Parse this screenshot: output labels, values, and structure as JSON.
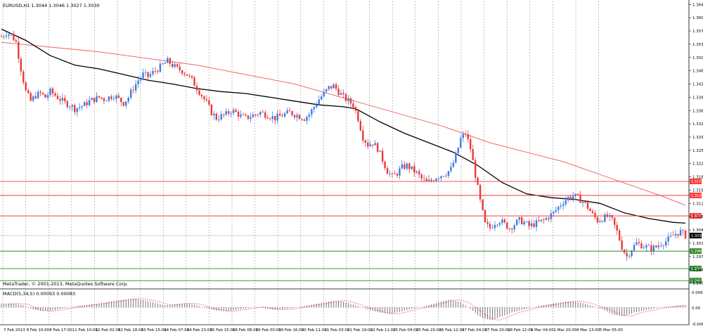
{
  "window": {
    "symbol_info": "EURUSD,H1  1.3044 1.3046 1.3027 1.3030",
    "copyright": "MetaTrader, © 2001-2013, MetaQuotes Software Corp.",
    "macd_label": "MACD(5,34,5) 0.00093 0.00083"
  },
  "colors": {
    "background": "#ffffff",
    "grid": "#999999",
    "bull": "#3b7de0",
    "bear": "#e83a3a",
    "slow_ma": "#f06a6a",
    "fast_ma": "#000000",
    "red_level": "#ff3a3a",
    "green_level": "#2e8b2e",
    "macd_hist": "#777777",
    "macd_signal": "#ff2020"
  },
  "chart_data": {
    "type": "candlestick",
    "symbol": "EURUSD",
    "timeframe": "H1",
    "ohlc_header": {
      "open": 1.3044,
      "high": 1.3046,
      "low": 1.3027,
      "close": 1.303
    },
    "price_axis_ticks": [
      "1.3640",
      "1.3605",
      "1.3570",
      "1.3535",
      "1.3500",
      "1.3465",
      "1.3430",
      "1.3395",
      "1.3360",
      "1.3325",
      "1.3290",
      "1.3255",
      "1.3220",
      "1.3185",
      "1.3150",
      "1.3115",
      "1.3080",
      "1.3045",
      "1.3010",
      "1.2975",
      "1.2940",
      "1.2905"
    ],
    "ylim": [
      1.2893,
      1.3648
    ],
    "current_price": "1.3030",
    "resistance_levels": [
      "1.3173",
      "1.3136",
      "1.3082"
    ],
    "support_levels": [
      "1.2989",
      "1.2943",
      "1.2911"
    ],
    "time_axis_labels": [
      "7 Feb 2013",
      "8 Feb 10:00",
      "8 Feb 17:00",
      "11 Feb 10:00",
      "12 Feb 02:00",
      "12 Feb 18:00",
      "13 Feb 15:00",
      "14 Feb 07:00",
      "14 Feb 23:00",
      "15 Feb 15:00",
      "18 Feb 08:00",
      "19 Feb 00:00",
      "19 Feb 16:00",
      "20 Feb 11:00",
      "21 Feb 03:00",
      "21 Feb 19:00",
      "22 Feb 11:00",
      "25 Feb 04:00",
      "25 Feb 20:00",
      "26 Feb 12:00",
      "27 Feb 04:00",
      "27 Feb 20:00",
      "28 Feb 12:00",
      "1 Mar 04:00",
      "1 Mar 20:00",
      "4 Mar 13:00",
      "5 Mar 05:00"
    ],
    "close_path": [
      [
        0,
        1.3555
      ],
      [
        2,
        1.3565
      ],
      [
        4,
        1.356
      ],
      [
        6,
        1.354
      ],
      [
        8,
        1.347
      ],
      [
        10,
        1.341
      ],
      [
        12,
        1.3385
      ],
      [
        14,
        1.34
      ],
      [
        16,
        1.3405
      ],
      [
        18,
        1.3395
      ],
      [
        20,
        1.341
      ],
      [
        22,
        1.34
      ],
      [
        24,
        1.339
      ],
      [
        26,
        1.338
      ],
      [
        28,
        1.3375
      ],
      [
        30,
        1.3365
      ],
      [
        32,
        1.337
      ],
      [
        34,
        1.3375
      ],
      [
        36,
        1.3385
      ],
      [
        38,
        1.339
      ],
      [
        40,
        1.3395
      ],
      [
        42,
        1.339
      ],
      [
        44,
        1.3395
      ],
      [
        46,
        1.34
      ],
      [
        48,
        1.339
      ],
      [
        50,
        1.338
      ],
      [
        52,
        1.3395
      ],
      [
        54,
        1.342
      ],
      [
        56,
        1.344
      ],
      [
        58,
        1.3455
      ],
      [
        60,
        1.345
      ],
      [
        62,
        1.346
      ],
      [
        64,
        1.347
      ],
      [
        66,
        1.348
      ],
      [
        68,
        1.349
      ],
      [
        70,
        1.348
      ],
      [
        72,
        1.347
      ],
      [
        74,
        1.3465
      ],
      [
        76,
        1.3455
      ],
      [
        78,
        1.344
      ],
      [
        80,
        1.342
      ],
      [
        82,
        1.34
      ],
      [
        84,
        1.338
      ],
      [
        86,
        1.3355
      ],
      [
        88,
        1.334
      ],
      [
        90,
        1.3345
      ],
      [
        92,
        1.335
      ],
      [
        94,
        1.336
      ],
      [
        96,
        1.3355
      ],
      [
        98,
        1.3345
      ],
      [
        100,
        1.334
      ],
      [
        102,
        1.3345
      ],
      [
        104,
        1.335
      ],
      [
        106,
        1.3355
      ],
      [
        108,
        1.335
      ],
      [
        110,
        1.3345
      ],
      [
        112,
        1.334
      ],
      [
        114,
        1.3345
      ],
      [
        116,
        1.335
      ],
      [
        118,
        1.3355
      ],
      [
        120,
        1.335
      ],
      [
        122,
        1.3345
      ],
      [
        124,
        1.334
      ],
      [
        126,
        1.335
      ],
      [
        128,
        1.337
      ],
      [
        130,
        1.339
      ],
      [
        132,
        1.3405
      ],
      [
        134,
        1.342
      ],
      [
        136,
        1.3425
      ],
      [
        138,
        1.341
      ],
      [
        140,
        1.3395
      ],
      [
        142,
        1.3385
      ],
      [
        144,
        1.3375
      ],
      [
        146,
        1.334
      ],
      [
        148,
        1.329
      ],
      [
        150,
        1.327
      ],
      [
        152,
        1.3275
      ],
      [
        154,
        1.326
      ],
      [
        156,
        1.323
      ],
      [
        158,
        1.32
      ],
      [
        160,
        1.3185
      ],
      [
        162,
        1.3195
      ],
      [
        164,
        1.321
      ],
      [
        166,
        1.3215
      ],
      [
        168,
        1.3205
      ],
      [
        170,
        1.3195
      ],
      [
        172,
        1.318
      ],
      [
        174,
        1.317
      ],
      [
        176,
        1.3175
      ],
      [
        178,
        1.3185
      ],
      [
        180,
        1.319
      ],
      [
        182,
        1.3195
      ],
      [
        184,
        1.3205
      ],
      [
        186,
        1.324
      ],
      [
        188,
        1.3285
      ],
      [
        190,
        1.33
      ],
      [
        192,
        1.326
      ],
      [
        194,
        1.319
      ],
      [
        196,
        1.312
      ],
      [
        198,
        1.306
      ],
      [
        200,
        1.305
      ],
      [
        202,
        1.3065
      ],
      [
        204,
        1.307
      ],
      [
        206,
        1.306
      ],
      [
        208,
        1.305
      ],
      [
        210,
        1.306
      ],
      [
        212,
        1.307
      ],
      [
        214,
        1.3065
      ],
      [
        216,
        1.3055
      ],
      [
        218,
        1.306
      ],
      [
        220,
        1.3065
      ],
      [
        222,
        1.307
      ],
      [
        224,
        1.308
      ],
      [
        226,
        1.309
      ],
      [
        228,
        1.3105
      ],
      [
        230,
        1.312
      ],
      [
        232,
        1.313
      ],
      [
        234,
        1.3135
      ],
      [
        236,
        1.313
      ],
      [
        238,
        1.312
      ],
      [
        240,
        1.3105
      ],
      [
        242,
        1.3085
      ],
      [
        244,
        1.307
      ],
      [
        246,
        1.3075
      ],
      [
        248,
        1.308
      ],
      [
        250,
        1.307
      ],
      [
        252,
        1.304
      ],
      [
        254,
        1.3
      ],
      [
        256,
        1.2975
      ],
      [
        258,
        1.2995
      ],
      [
        260,
        1.301
      ],
      [
        262,
        1.3005
      ],
      [
        264,
        1.3
      ],
      [
        266,
        1.2995
      ],
      [
        268,
        1.3
      ],
      [
        270,
        1.301
      ],
      [
        272,
        1.3015
      ],
      [
        274,
        1.3025
      ],
      [
        276,
        1.3035
      ],
      [
        278,
        1.304
      ],
      [
        280,
        1.303
      ]
    ],
    "slow_ma_path": [
      [
        0,
        1.354
      ],
      [
        40,
        1.3515
      ],
      [
        80,
        1.348
      ],
      [
        120,
        1.343
      ],
      [
        150,
        1.3375
      ],
      [
        180,
        1.332
      ],
      [
        200,
        1.3275
      ],
      [
        230,
        1.3225
      ],
      [
        250,
        1.318
      ],
      [
        270,
        1.3135
      ],
      [
        280,
        1.311
      ]
    ],
    "fast_ma_path": [
      [
        0,
        1.3575
      ],
      [
        10,
        1.3545
      ],
      [
        20,
        1.3505
      ],
      [
        30,
        1.348
      ],
      [
        40,
        1.347
      ],
      [
        50,
        1.3455
      ],
      [
        60,
        1.344
      ],
      [
        70,
        1.343
      ],
      [
        80,
        1.3418
      ],
      [
        90,
        1.341
      ],
      [
        100,
        1.3405
      ],
      [
        110,
        1.3395
      ],
      [
        120,
        1.3385
      ],
      [
        130,
        1.3375
      ],
      [
        140,
        1.337
      ],
      [
        145,
        1.3365
      ],
      [
        155,
        1.333
      ],
      [
        165,
        1.33
      ],
      [
        175,
        1.3275
      ],
      [
        185,
        1.325
      ],
      [
        195,
        1.3215
      ],
      [
        205,
        1.317
      ],
      [
        215,
        1.314
      ],
      [
        225,
        1.313
      ],
      [
        235,
        1.3125
      ],
      [
        245,
        1.3115
      ],
      [
        255,
        1.309
      ],
      [
        265,
        1.3075
      ],
      [
        275,
        1.3065
      ],
      [
        280,
        1.3063
      ]
    ],
    "macd_indicator": "MACD(5,34,5)",
    "macd_values": {
      "main": 0.00093,
      "signal": 0.00083
    },
    "macd_axis_ticks": [
      "0.00601",
      "0.00",
      "-0.00619"
    ],
    "macd_hist": [
      0.0012,
      0.0015,
      0.001,
      -0.0008,
      -0.0015,
      -0.0012,
      -0.0005,
      0.0002,
      0.0008,
      0.0012,
      0.0018,
      0.0024,
      0.003,
      0.0034,
      0.0028,
      0.0018,
      0.0008,
      0.0012,
      0.0016,
      0.001,
      -0.0004,
      -0.0012,
      -0.0016,
      -0.001,
      -0.0004,
      0.0002,
      -0.0006,
      -0.001,
      -0.0006,
      0.0,
      0.0008,
      0.0014,
      0.0022,
      0.0026,
      0.0016,
      0.0004,
      -0.001,
      -0.002,
      -0.0026,
      -0.0018,
      -0.0008,
      0.0,
      0.001,
      0.0022,
      0.003,
      0.002,
      -0.0008,
      -0.004,
      -0.005,
      -0.0036,
      -0.002,
      -0.001,
      0.0,
      0.0008,
      0.0014,
      0.002,
      0.0024,
      0.0016,
      0.0004,
      -0.001,
      -0.003,
      -0.0034,
      -0.002,
      -0.0012,
      -0.0004,
      0.0002,
      0.0006,
      0.0009
    ]
  }
}
